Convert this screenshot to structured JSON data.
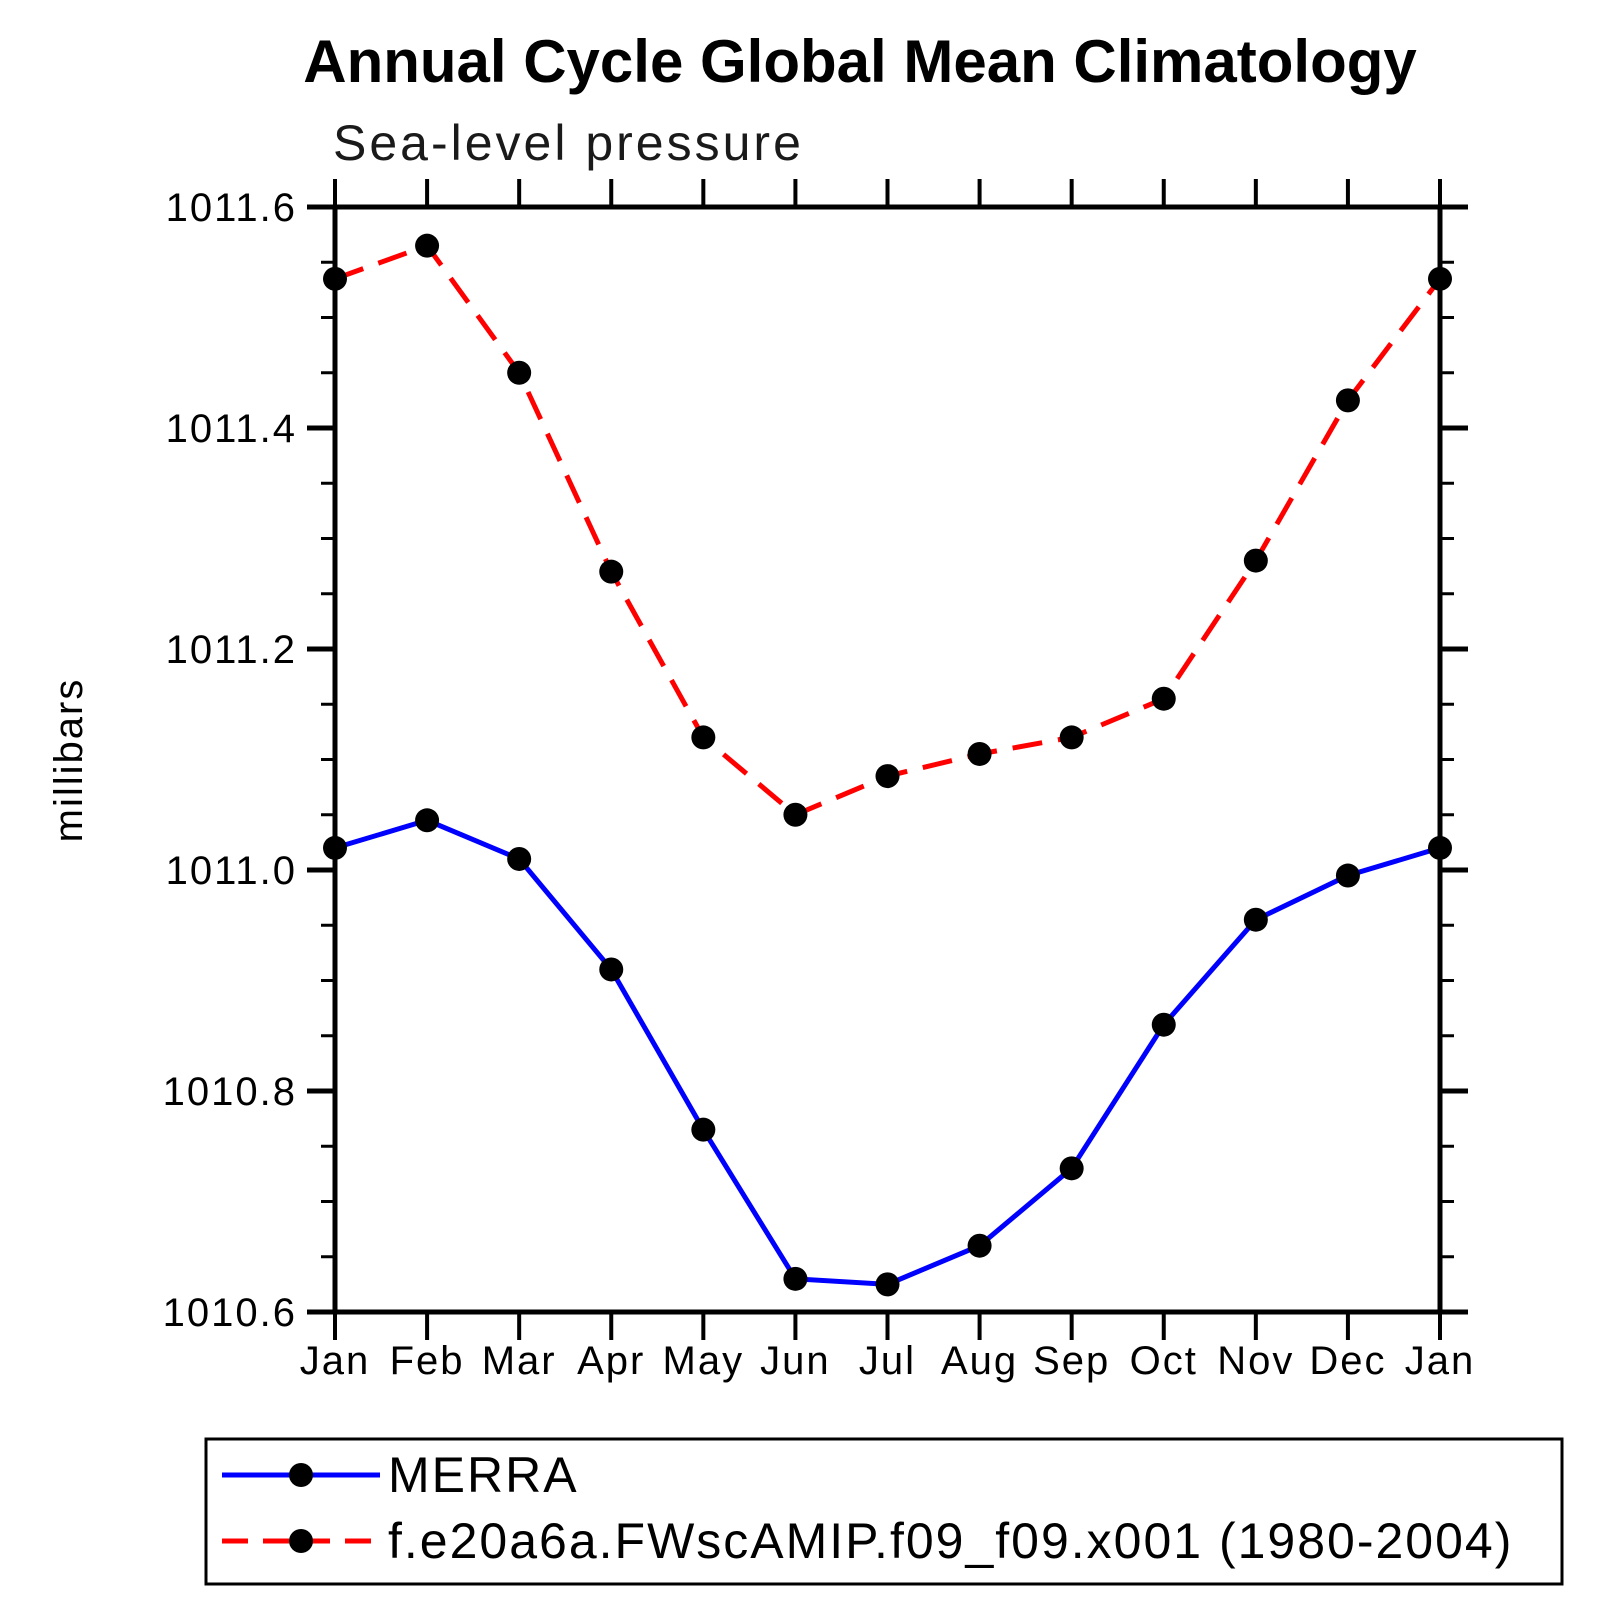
{
  "chart_data": {
    "type": "line",
    "title": "Annual Cycle Global Mean Climatology",
    "subtitle": "Sea-level pressure",
    "ylabel": "millibars",
    "ylim": [
      1010.6,
      1011.6
    ],
    "y_major_tick_step": 0.2,
    "y_minor_tick_step": 0.05,
    "y_major_tick_labels": [
      "1010.6",
      "1010.8",
      "1011.0",
      "1011.2",
      "1011.4",
      "1011.6"
    ],
    "categories": [
      "Jan",
      "Feb",
      "Mar",
      "Apr",
      "May",
      "Jun",
      "Jul",
      "Aug",
      "Sep",
      "Oct",
      "Nov",
      "Dec",
      "Jan"
    ],
    "grid": "off",
    "legend_position": "bottom-left boxed",
    "marker_color": "#000000",
    "series": [
      {
        "name": "MERRA",
        "color": "#0000ff",
        "style": "solid",
        "marker": "filled-circle",
        "values": [
          1011.02,
          1011.045,
          1011.01,
          1010.91,
          1010.765,
          1010.63,
          1010.625,
          1010.66,
          1010.73,
          1010.86,
          1010.955,
          1010.995,
          1011.02
        ]
      },
      {
        "name": "f.e20a6a.FWscAMIP.f09_f09.x001 (1980-2004)",
        "color": "#ff0000",
        "style": "dashed",
        "marker": "filled-circle",
        "values": [
          1011.535,
          1011.565,
          1011.45,
          1011.27,
          1011.12,
          1011.05,
          1011.085,
          1011.105,
          1011.12,
          1011.155,
          1011.28,
          1011.425,
          1011.535
        ]
      }
    ]
  }
}
